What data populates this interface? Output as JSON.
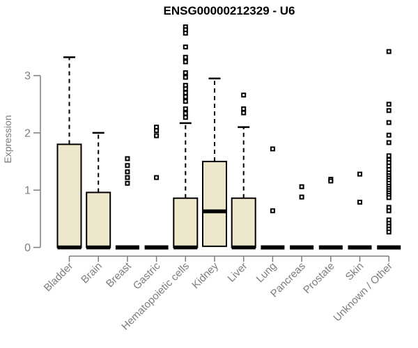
{
  "chart_data": {
    "type": "boxplot",
    "title": "ENSG00000212329 - U6",
    "ylabel": "Expression",
    "xlabel": "",
    "yticks": [
      0,
      1,
      2,
      3
    ],
    "ylim": [
      0,
      3.95
    ],
    "grid": false,
    "legend": "none",
    "categories": [
      "Bladder",
      "Brain",
      "Breast",
      "Gastric",
      "Hematopoietic cells",
      "Kidney",
      "Liver",
      "Lung",
      "Pancreas",
      "Prostate",
      "Skin",
      "Unknown / Other"
    ],
    "series": [
      {
        "category": "Bladder",
        "q1": 0,
        "median": 0,
        "q3": 1.8,
        "whisker_low": 0,
        "whisker_high": 3.32,
        "outliers": []
      },
      {
        "category": "Brain",
        "q1": 0,
        "median": 0,
        "q3": 0.96,
        "whisker_low": 0,
        "whisker_high": 2.0,
        "outliers": []
      },
      {
        "category": "Breast",
        "q1": 0,
        "median": 0,
        "q3": 0,
        "whisker_low": 0,
        "whisker_high": 0,
        "outliers": [
          1.55,
          1.43,
          1.32,
          1.22,
          1.12
        ]
      },
      {
        "category": "Gastric",
        "q1": 0,
        "median": 0,
        "q3": 0,
        "whisker_low": 0,
        "whisker_high": 0,
        "outliers": [
          2.1,
          2.04,
          1.95,
          1.22
        ]
      },
      {
        "category": "Hematopoietic cells",
        "q1": 0,
        "median": 0,
        "q3": 0.86,
        "whisker_low": 0,
        "whisker_high": 2.17,
        "outliers": [
          3.85,
          3.8,
          3.74,
          3.5,
          3.32,
          3.24,
          3.05,
          2.97,
          2.83,
          2.77,
          2.7,
          2.63,
          2.55,
          2.42,
          2.34,
          2.27
        ]
      },
      {
        "category": "Kidney",
        "q1": 0.02,
        "median": 0.63,
        "q3": 1.5,
        "whisker_low": 0.02,
        "whisker_high": 2.95,
        "outliers": []
      },
      {
        "category": "Liver",
        "q1": 0,
        "median": 0,
        "q3": 0.86,
        "whisker_low": 0,
        "whisker_high": 2.1,
        "outliers": [
          2.66,
          2.42,
          2.35
        ]
      },
      {
        "category": "Lung",
        "q1": 0,
        "median": 0,
        "q3": 0,
        "whisker_low": 0,
        "whisker_high": 0,
        "outliers": [
          1.72,
          0.64
        ]
      },
      {
        "category": "Pancreas",
        "q1": 0,
        "median": 0,
        "q3": 0,
        "whisker_low": 0,
        "whisker_high": 0,
        "outliers": [
          1.06,
          0.88
        ]
      },
      {
        "category": "Prostate",
        "q1": 0,
        "median": 0,
        "q3": 0,
        "whisker_low": 0,
        "whisker_high": 0,
        "outliers": [
          1.19,
          1.16
        ]
      },
      {
        "category": "Skin",
        "q1": 0,
        "median": 0,
        "q3": 0,
        "whisker_low": 0,
        "whisker_high": 0,
        "outliers": [
          1.28,
          0.79
        ]
      },
      {
        "category": "Unknown / Other",
        "q1": 0,
        "median": 0,
        "q3": 0,
        "whisker_low": 0,
        "whisker_high": 0,
        "outliers": [
          3.42,
          2.5,
          2.39,
          2.18,
          1.96,
          1.83,
          1.6,
          1.53,
          1.48,
          1.42,
          1.36,
          1.3,
          1.25,
          1.21,
          1.17,
          1.12,
          1.07,
          1.03,
          0.99,
          0.95,
          0.91,
          0.87,
          0.7,
          0.64,
          0.48,
          0.42,
          0.37,
          0.32,
          0.27
        ]
      }
    ],
    "colors": {
      "box_fill": "#EDE8CB",
      "box_stroke": "#000000",
      "whisker": "#000000",
      "outlier": "#000000",
      "axis": "#7d7d7d",
      "text": "#7d7d7d",
      "title": "#000000",
      "background": "#ffffff"
    }
  }
}
